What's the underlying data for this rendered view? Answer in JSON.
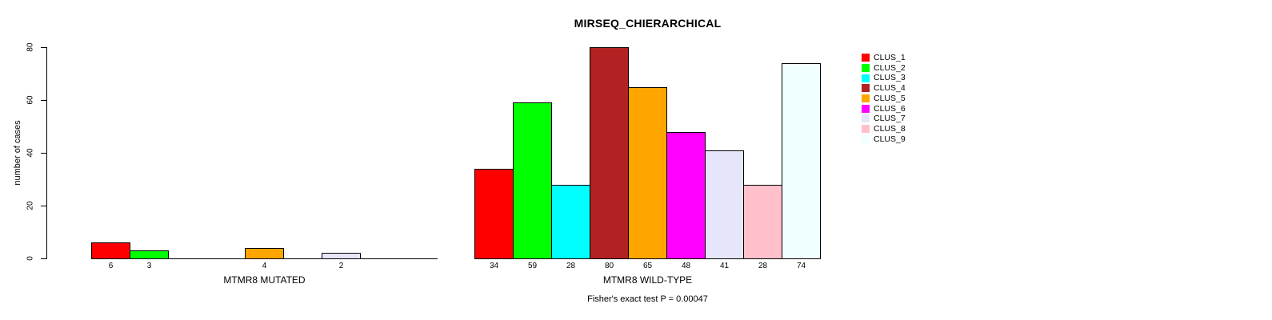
{
  "chart_data": {
    "type": "bar",
    "title": "MIRSEQ_CHIERARCHICAL",
    "ylabel": "number of cases",
    "ylim": [
      0,
      80
    ],
    "yticks": [
      0,
      20,
      40,
      60,
      80
    ],
    "annotation": "Fisher's exact test P = 0.00047",
    "legend_position": "right",
    "grid": false,
    "legend": [
      {
        "label": "CLUS_1",
        "color": "#FF0000"
      },
      {
        "label": "CLUS_2",
        "color": "#00FF00"
      },
      {
        "label": "CLUS_3",
        "color": "#00FFFF"
      },
      {
        "label": "CLUS_4",
        "color": "#B22222"
      },
      {
        "label": "CLUS_5",
        "color": "#FFA500"
      },
      {
        "label": "CLUS_6",
        "color": "#FF00FF"
      },
      {
        "label": "CLUS_7",
        "color": "#E6E6FA"
      },
      {
        "label": "CLUS_8",
        "color": "#FFC0CB"
      },
      {
        "label": "CLUS_9",
        "color": "#F0FFFF"
      }
    ],
    "groups": [
      {
        "label": "MTMR8 MUTATED",
        "values": [
          6,
          3,
          0,
          0,
          4,
          0,
          2,
          0,
          0
        ]
      },
      {
        "label": "MTMR8 WILD-TYPE",
        "values": [
          34,
          59,
          28,
          80,
          65,
          48,
          41,
          28,
          74
        ]
      }
    ]
  }
}
